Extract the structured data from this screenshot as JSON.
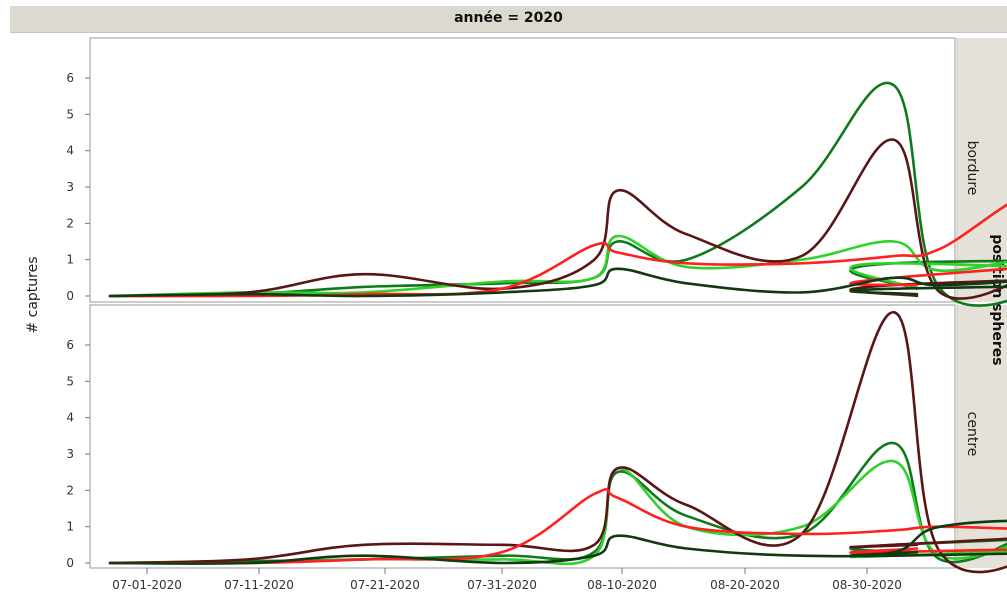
{
  "header": {
    "title": "année = 2020"
  },
  "chart_data": {
    "type": "line",
    "ylabel": "# captures",
    "xlabel": "",
    "facet_title": "année = 2020",
    "facet_group_label": "position spheres",
    "x_tick_labels": [
      "07-01-2020",
      "07-11-2020",
      "07-21-2020",
      "07-31-2020",
      "08-10-2020",
      "08-20-2020",
      "08-30-2020"
    ],
    "yticks": [
      0,
      1,
      2,
      3,
      4,
      5,
      6
    ],
    "ylim": [
      0,
      7
    ],
    "x": [
      "06-29",
      "07-05",
      "07-10",
      "07-16",
      "07-20",
      "07-21",
      "07-24",
      "07-29",
      "08-02",
      "08-04",
      "08-09",
      "08-11",
      "08-13",
      "08-17",
      "08-18",
      "08-20",
      "08-24",
      "08-25",
      "08-29",
      "09-02",
      "09-03"
    ],
    "series_colors": [
      "#0f7a1c",
      "#2fd12a",
      "#5a1616",
      "#ff2020",
      "#123a12"
    ],
    "panels": [
      {
        "name": "bordure",
        "series": [
          {
            "color": "#0f7a1c",
            "values": [
              0,
              0.05,
              0.25,
              0.35,
              0.5,
              1.5,
              1.0,
              3.0,
              5.8,
              0.2,
              0.5,
              3.1,
              2.0,
              0.1,
              1.2,
              1.4,
              0.9,
              2.2,
              1.1,
              0.9,
              0.2
            ]
          },
          {
            "color": "#2fd12a",
            "values": [
              0,
              0.1,
              0.1,
              0.4,
              0.5,
              1.65,
              0.8,
              1.0,
              1.5,
              0.7,
              1.2,
              1.3,
              1.0,
              0.4,
              0.1,
              0.2,
              0.4,
              1.5,
              0.3,
              0.9,
              0.2
            ]
          },
          {
            "color": "#5a1616",
            "values": [
              0,
              0.1,
              0.6,
              0.2,
              1.0,
              2.9,
              1.7,
              1.1,
              4.3,
              0.1,
              1.0,
              2.3,
              1.8,
              0.6,
              1.2,
              0.5,
              0.8,
              2.2,
              1.0,
              0.3,
              0.0
            ]
          },
          {
            "color": "#ff2020",
            "values": [
              0,
              0.0,
              0.05,
              0.2,
              1.4,
              1.2,
              0.9,
              0.9,
              1.1,
              1.3,
              3.0,
              0.3,
              0.4,
              0.6,
              0.5,
              1.1,
              1.9,
              2.0,
              1.8,
              0.5,
              0.3
            ]
          },
          {
            "color": "#123a12",
            "values": [
              0,
              0.05,
              0.0,
              0.1,
              0.3,
              0.75,
              0.35,
              0.1,
              0.5,
              0.3,
              0.6,
              1.5,
              1.0,
              0.2,
              0.3,
              0.5,
              0.5,
              1.0,
              0.5,
              0.2,
              0.05
            ]
          }
        ]
      },
      {
        "name": "centre",
        "series": [
          {
            "color": "#0f7a1c",
            "values": [
              0,
              0.05,
              0.1,
              0.2,
              0.3,
              2.5,
              1.3,
              0.8,
              3.3,
              0.1,
              1.2,
              1.7,
              1.5,
              1.2,
              0.3,
              0.5,
              0.8,
              1.0,
              1.2,
              0.5,
              0.3
            ]
          },
          {
            "color": "#2fd12a",
            "values": [
              0,
              0.0,
              0.1,
              0.1,
              0.2,
              2.6,
              1.0,
              1.0,
              2.8,
              0.2,
              0.9,
              1.1,
              1.6,
              1.5,
              0.2,
              0.4,
              0.6,
              1.2,
              0.9,
              0.2,
              0.3
            ]
          },
          {
            "color": "#5a1616",
            "values": [
              0,
              0.1,
              0.5,
              0.5,
              0.5,
              2.6,
              1.6,
              0.8,
              6.9,
              0.3,
              0.6,
              3.3,
              1.5,
              0.9,
              0.1,
              0.6,
              1.0,
              0.4,
              1.3,
              0.5,
              0.5
            ]
          },
          {
            "color": "#ff2020",
            "values": [
              0,
              0.0,
              0.1,
              0.3,
              1.9,
              1.8,
              1.0,
              0.8,
              0.9,
              1.0,
              0.9,
              0.9,
              1.3,
              1.7,
              0.4,
              0.6,
              1.1,
              1.5,
              0.8,
              0.3,
              0.4
            ]
          },
          {
            "color": "#123a12",
            "values": [
              0,
              0.0,
              0.2,
              0.0,
              0.2,
              0.75,
              0.4,
              0.2,
              0.3,
              1.0,
              1.1,
              0.3,
              0.1,
              1.5,
              0.3,
              0.3,
              0.3,
              0.4,
              0.5,
              0.2,
              0.3
            ]
          }
        ]
      }
    ]
  }
}
